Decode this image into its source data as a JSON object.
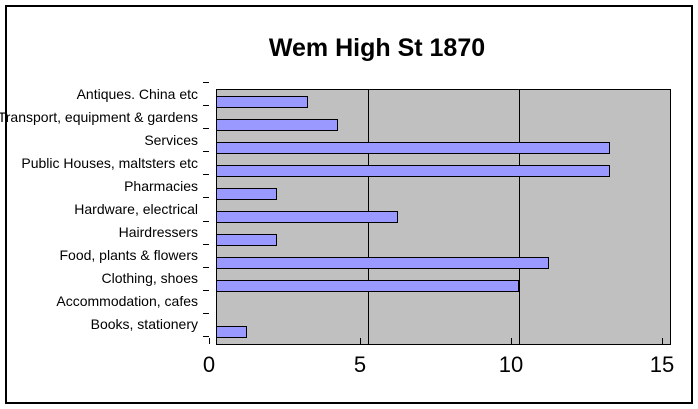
{
  "chart_data": {
    "type": "bar",
    "orientation": "horizontal",
    "title": "Wem High St 1870",
    "categories": [
      "Antiques. China etc",
      "Transport, equipment & gardens",
      "Services",
      "Public Houses, maltsters etc",
      "Pharmacies",
      "Hardware, electrical",
      "Hairdressers",
      "Food, plants & flowers",
      "Clothing, shoes",
      "Accommodation, cafes",
      "Books, stationery"
    ],
    "values": [
      3,
      4,
      13,
      13,
      2,
      6,
      2,
      11,
      10,
      0,
      1
    ],
    "xlabel": "",
    "ylabel": "",
    "xlim": [
      0,
      15
    ],
    "x_ticks": [
      0,
      5,
      10,
      15
    ],
    "grid": true,
    "legend": false,
    "colors": {
      "bar_fill": "#9999FF",
      "bar_border": "#000000",
      "plot_background": "#C0C0C0",
      "gridline": "#000000",
      "frame_border": "#000000",
      "text": "#000000",
      "chart_background": "#FFFFFF"
    }
  }
}
